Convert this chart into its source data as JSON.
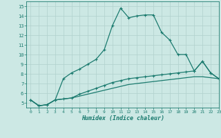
{
  "line1_x": [
    0,
    1,
    2,
    3,
    4,
    5,
    6,
    7,
    8,
    9,
    10,
    11,
    12,
    13,
    14,
    15,
    16,
    17,
    18,
    19,
    20,
    21,
    22,
    23
  ],
  "line1_y": [
    5.3,
    4.7,
    4.8,
    5.3,
    7.5,
    8.1,
    8.5,
    9.0,
    9.5,
    10.5,
    13.0,
    14.8,
    13.8,
    14.0,
    14.1,
    14.1,
    12.3,
    11.5,
    10.0,
    10.0,
    8.3,
    9.3,
    8.1,
    7.5
  ],
  "line2_x": [
    0,
    1,
    2,
    3,
    4,
    5,
    6,
    7,
    8,
    9,
    10,
    11,
    12,
    13,
    14,
    15,
    16,
    17,
    18,
    19,
    20,
    21,
    22,
    23
  ],
  "line2_y": [
    5.3,
    4.7,
    4.8,
    5.3,
    5.4,
    5.5,
    5.9,
    6.2,
    6.5,
    6.8,
    7.1,
    7.3,
    7.5,
    7.6,
    7.7,
    7.8,
    7.9,
    8.0,
    8.1,
    8.2,
    8.3,
    9.3,
    8.1,
    7.5
  ],
  "line3_x": [
    0,
    1,
    2,
    3,
    4,
    5,
    6,
    7,
    8,
    9,
    10,
    11,
    12,
    13,
    14,
    15,
    16,
    17,
    18,
    19,
    20,
    21,
    22,
    23
  ],
  "line3_y": [
    5.3,
    4.7,
    4.8,
    5.3,
    5.4,
    5.5,
    5.7,
    5.9,
    6.1,
    6.3,
    6.5,
    6.7,
    6.9,
    7.0,
    7.1,
    7.2,
    7.3,
    7.4,
    7.5,
    7.6,
    7.7,
    7.7,
    7.6,
    7.5
  ],
  "line_color": "#1a7a6e",
  "marker": "+",
  "marker_size": 3,
  "bg_color": "#cce8e4",
  "grid_color": "#b0d0cc",
  "xlabel": "Humidex (Indice chaleur)",
  "xlim": [
    -0.5,
    23
  ],
  "ylim": [
    4.5,
    15.5
  ],
  "xticks": [
    0,
    1,
    2,
    3,
    4,
    5,
    6,
    7,
    8,
    9,
    10,
    11,
    12,
    13,
    14,
    15,
    16,
    17,
    18,
    19,
    20,
    21,
    22,
    23
  ],
  "yticks": [
    5,
    6,
    7,
    8,
    9,
    10,
    11,
    12,
    13,
    14,
    15
  ]
}
